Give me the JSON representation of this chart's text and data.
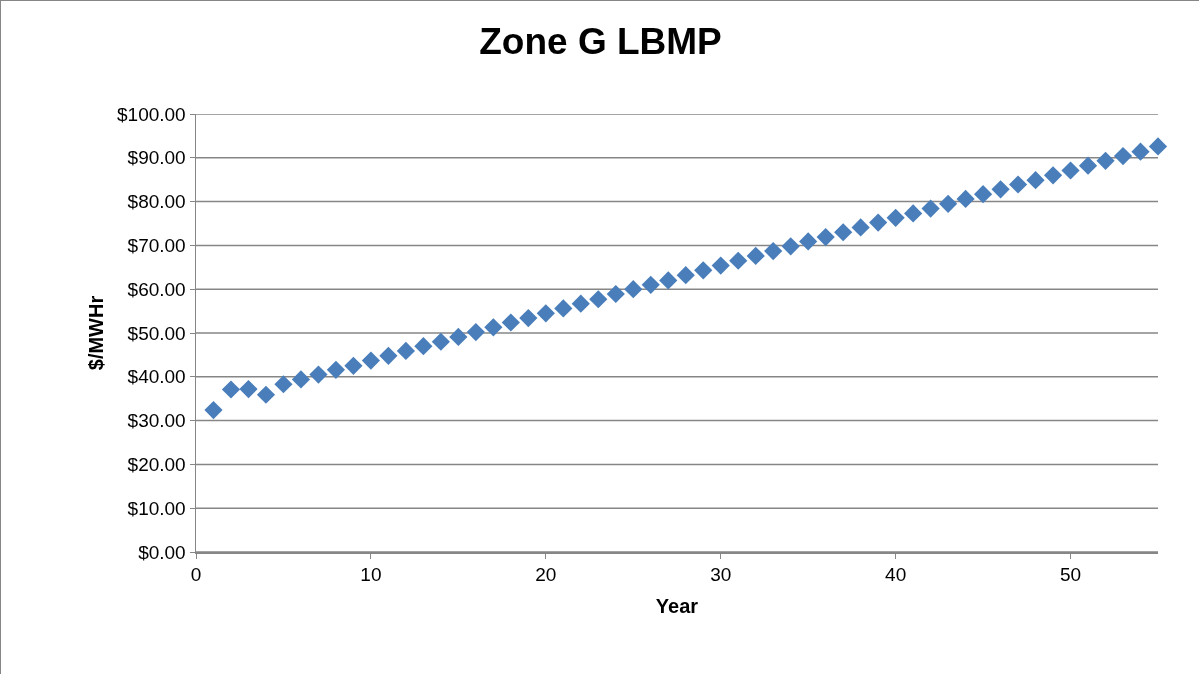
{
  "chart_data": {
    "type": "scatter",
    "title": "Zone G LBMP",
    "xlabel": "Year",
    "ylabel": "$/MWHr",
    "x": [
      1,
      2,
      3,
      4,
      5,
      6,
      7,
      8,
      9,
      10,
      11,
      12,
      13,
      14,
      15,
      16,
      17,
      18,
      19,
      20,
      21,
      22,
      23,
      24,
      25,
      26,
      27,
      28,
      29,
      30,
      31,
      32,
      33,
      34,
      35,
      36,
      37,
      38,
      39,
      40,
      41,
      42,
      43,
      44,
      45,
      46,
      47,
      48,
      49,
      50,
      51,
      52,
      53,
      54,
      55
    ],
    "series": [
      {
        "color": "#4a7ebb",
        "values": [
          32.4,
          37.1,
          37.2,
          35.9,
          38.3,
          39.4,
          40.5,
          41.6,
          42.5,
          43.7,
          44.8,
          45.9,
          47.0,
          48.0,
          49.1,
          50.2,
          51.3,
          52.4,
          53.4,
          54.5,
          55.6,
          56.7,
          57.7,
          58.9,
          60.0,
          61.0,
          62.0,
          63.2,
          64.3,
          65.4,
          66.5,
          67.6,
          68.7,
          69.8,
          70.9,
          71.9,
          73.0,
          74.1,
          75.2,
          76.3,
          77.3,
          78.4,
          79.5,
          80.6,
          81.7,
          82.8,
          83.9,
          84.9,
          86.0,
          87.1,
          88.2,
          89.3,
          90.4,
          91.4,
          92.6
        ]
      }
    ],
    "xlim": [
      0,
      55
    ],
    "xticks": [
      0,
      10,
      20,
      30,
      40,
      50
    ],
    "ylim": [
      0,
      100
    ],
    "yticks": [
      {
        "value": 0,
        "label": "$0.00"
      },
      {
        "value": 10,
        "label": "$10.00"
      },
      {
        "value": 20,
        "label": "$20.00"
      },
      {
        "value": 30,
        "label": "$30.00"
      },
      {
        "value": 40,
        "label": "$40.00"
      },
      {
        "value": 50,
        "label": "$50.00"
      },
      {
        "value": 60,
        "label": "$60.00"
      },
      {
        "value": 70,
        "label": "$70.00"
      },
      {
        "value": 80,
        "label": "$80.00"
      },
      {
        "value": 90,
        "label": "$90.00"
      },
      {
        "value": 100,
        "label": "$100.00"
      }
    ],
    "grid": "y",
    "marker": "diamond"
  }
}
